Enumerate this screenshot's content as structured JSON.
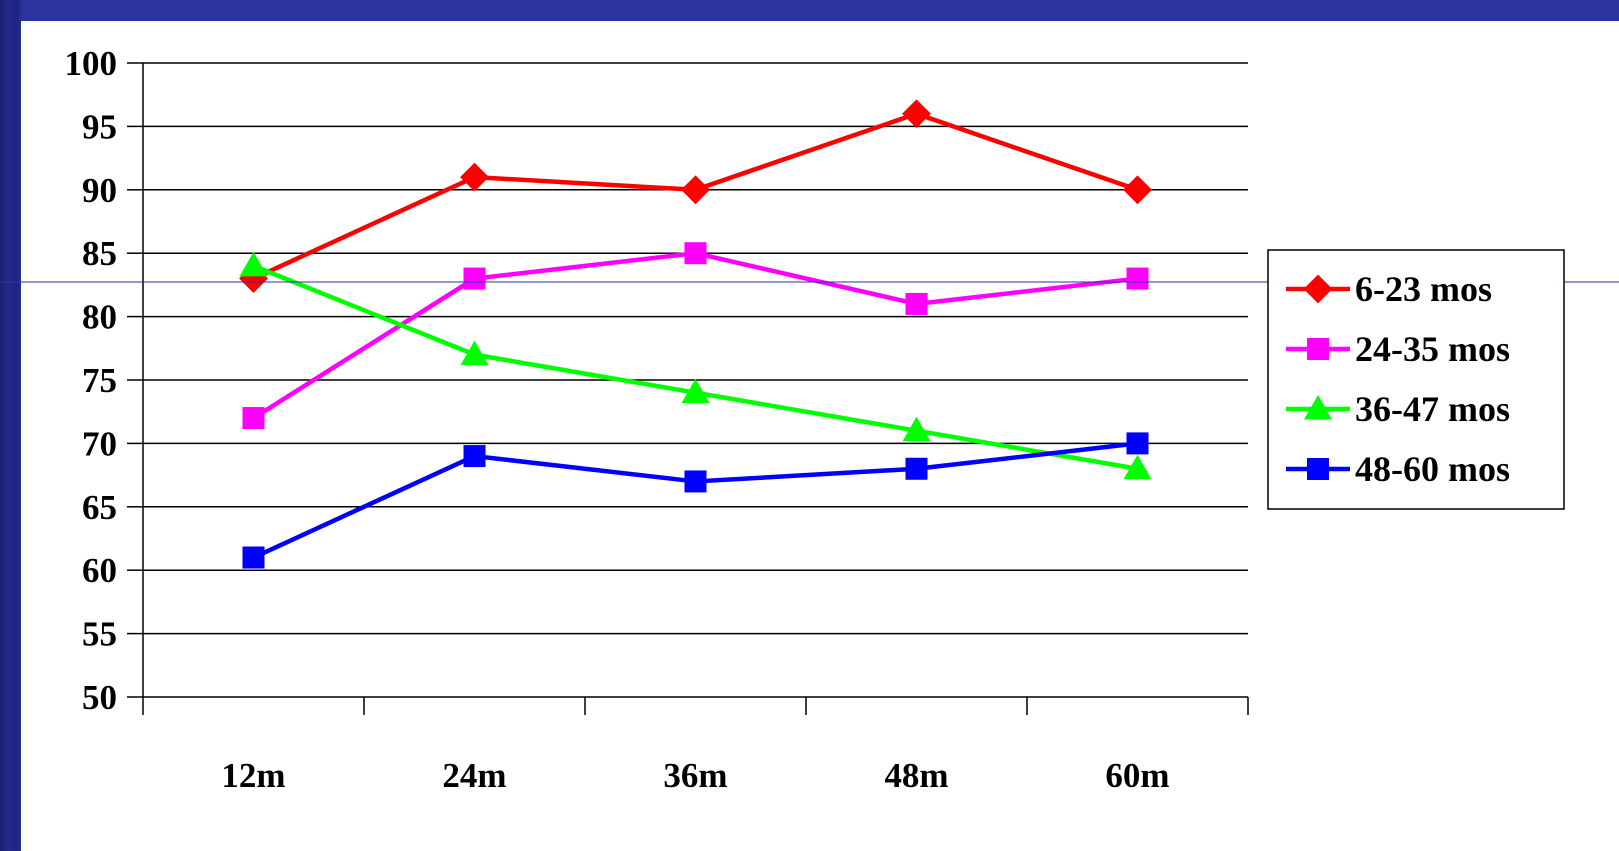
{
  "chart_data": {
    "type": "line",
    "title": "",
    "xlabel": "",
    "ylabel": "",
    "categories": [
      "12m",
      "24m",
      "36m",
      "48m",
      "60m"
    ],
    "ylim": [
      50,
      100
    ],
    "yticks": [
      "50",
      "55",
      "60",
      "65",
      "70",
      "75",
      "80",
      "85",
      "90",
      "95",
      "100"
    ],
    "grid": "horizontal",
    "legend_position": "right",
    "series": [
      {
        "name": "6-23 mos",
        "values": [
          83,
          91,
          90,
          96,
          90
        ],
        "color": "#ff0000",
        "marker": "diamond"
      },
      {
        "name": "24-35 mos",
        "values": [
          72,
          83,
          85,
          81,
          83
        ],
        "color": "#ff00ff",
        "marker": "square"
      },
      {
        "name": "36-47 mos",
        "values": [
          84,
          77,
          74,
          71,
          68
        ],
        "color": "#00ff00",
        "marker": "triangle"
      },
      {
        "name": "48-60 mos",
        "values": [
          61,
          69,
          67,
          68,
          70
        ],
        "color": "#0000ff",
        "marker": "square"
      }
    ]
  }
}
